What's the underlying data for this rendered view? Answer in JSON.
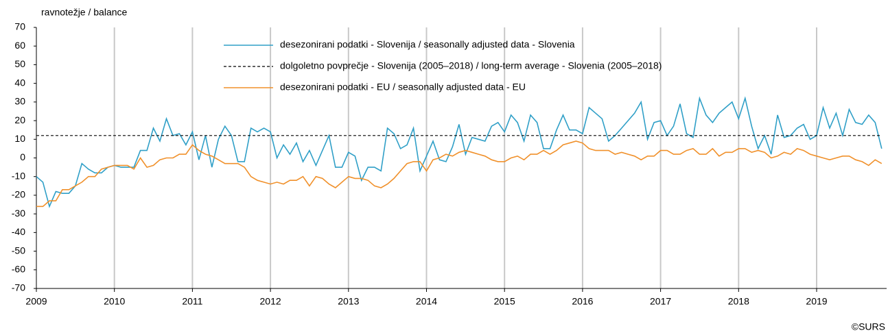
{
  "chart_data": {
    "type": "line",
    "y_label": "ravnotežje / balance",
    "source": "©SURS",
    "categories": [
      "2009",
      null,
      null,
      null,
      null,
      null,
      null,
      null,
      null,
      null,
      null,
      null,
      "2010",
      null,
      null,
      null,
      null,
      null,
      null,
      null,
      null,
      null,
      null,
      null,
      "2011",
      null,
      null,
      null,
      null,
      null,
      null,
      null,
      null,
      null,
      null,
      null,
      "2012",
      null,
      null,
      null,
      null,
      null,
      null,
      null,
      null,
      null,
      null,
      null,
      "2013",
      null,
      null,
      null,
      null,
      null,
      null,
      null,
      null,
      null,
      null,
      null,
      "2014",
      null,
      null,
      null,
      null,
      null,
      null,
      null,
      null,
      null,
      null,
      null,
      "2015",
      null,
      null,
      null,
      null,
      null,
      null,
      null,
      null,
      null,
      null,
      null,
      "2016",
      null,
      null,
      null,
      null,
      null,
      null,
      null,
      null,
      null,
      null,
      null,
      "2017",
      null,
      null,
      null,
      null,
      null,
      null,
      null,
      null,
      null,
      null,
      null,
      "2018",
      null,
      null,
      null,
      null,
      null,
      null,
      null,
      null,
      null,
      null,
      null,
      "2019",
      null,
      null,
      null,
      null,
      null,
      null,
      null,
      null,
      null,
      null
    ],
    "ylim": [
      -70,
      70
    ],
    "yticks": [
      -70,
      -60,
      -50,
      -40,
      -30,
      -20,
      -10,
      0,
      10,
      20,
      30,
      40,
      50,
      60,
      70
    ],
    "grid": true,
    "series": [
      {
        "name": "desezonirani podatki - Slovenija / seasonally adjusted data - Slovenia",
        "color": "#2f9fc7",
        "style": "solid",
        "values": [
          -10,
          -13,
          -26,
          -18,
          -19,
          -19,
          -15,
          -3,
          -6,
          -8,
          -8,
          -5,
          -4,
          -5,
          -5,
          -5,
          4,
          4,
          16,
          9,
          21,
          12,
          13,
          7,
          14,
          -1,
          12,
          -5,
          10,
          17,
          12,
          -2,
          -2,
          16,
          14,
          16,
          14,
          0,
          7,
          2,
          8,
          -2,
          4,
          -4,
          4,
          12,
          -5,
          -5,
          3,
          1,
          -12,
          -5,
          -5,
          -7,
          16,
          13,
          5,
          7,
          16,
          -7,
          1,
          9,
          -1,
          -2,
          6,
          18,
          2,
          11,
          10,
          9,
          17,
          19,
          14,
          23,
          19,
          9,
          23,
          19,
          5,
          5,
          15,
          23,
          15,
          15,
          13,
          27,
          24,
          21,
          9,
          12,
          16,
          20,
          24,
          30,
          10,
          19,
          20,
          12,
          17,
          29,
          13,
          11,
          32,
          23,
          19,
          24,
          27,
          30,
          21,
          32,
          17,
          5,
          12,
          2,
          23,
          11,
          12,
          16,
          18,
          10,
          12,
          27,
          16,
          24,
          12,
          26,
          19,
          18,
          23,
          19,
          5
        ]
      },
      {
        "name": "dolgoletno povprečje - Slovenija (2005–2018) / long-term average - Slovenia (2005–2018)",
        "color": "#000000",
        "style": "dashed",
        "values": [
          12,
          12,
          12,
          12,
          12,
          12,
          12,
          12,
          12,
          12,
          12,
          12,
          12,
          12,
          12,
          12,
          12,
          12,
          12,
          12,
          12,
          12,
          12,
          12,
          12,
          12,
          12,
          12,
          12,
          12,
          12,
          12,
          12,
          12,
          12,
          12,
          12,
          12,
          12,
          12,
          12,
          12,
          12,
          12,
          12,
          12,
          12,
          12,
          12,
          12,
          12,
          12,
          12,
          12,
          12,
          12,
          12,
          12,
          12,
          12,
          12,
          12,
          12,
          12,
          12,
          12,
          12,
          12,
          12,
          12,
          12,
          12,
          12,
          12,
          12,
          12,
          12,
          12,
          12,
          12,
          12,
          12,
          12,
          12,
          12,
          12,
          12,
          12,
          12,
          12,
          12,
          12,
          12,
          12,
          12,
          12,
          12,
          12,
          12,
          12,
          12,
          12,
          12,
          12,
          12,
          12,
          12,
          12,
          12,
          12,
          12,
          12,
          12,
          12,
          12,
          12,
          12,
          12,
          12,
          12,
          12,
          12,
          12,
          12,
          12,
          12,
          12,
          12,
          12,
          12,
          12
        ]
      },
      {
        "name": "desezonirani podatki - EU / seasonally adjusted data - EU",
        "color": "#f0902a",
        "style": "solid",
        "values": [
          -26,
          -26,
          -23,
          -23,
          -17,
          -17,
          -15,
          -13,
          -10,
          -10,
          -6,
          -5,
          -4,
          -4,
          -4,
          -6,
          0,
          -5,
          -4,
          -1,
          0,
          0,
          2,
          2,
          7,
          4,
          2,
          1,
          -1,
          -3,
          -3,
          -3,
          -5,
          -10,
          -12,
          -13,
          -14,
          -13,
          -14,
          -12,
          -12,
          -10,
          -15,
          -10,
          -11,
          -14,
          -16,
          -13,
          -10,
          -11,
          -11,
          -12,
          -15,
          -16,
          -14,
          -11,
          -7,
          -3,
          -2,
          -2,
          -7,
          -1,
          0,
          2,
          1,
          3,
          4,
          3,
          2,
          1,
          -1,
          -2,
          -2,
          0,
          1,
          -1,
          2,
          2,
          4,
          2,
          4,
          7,
          8,
          9,
          8,
          5,
          4,
          4,
          4,
          2,
          3,
          2,
          1,
          -1,
          1,
          1,
          4,
          4,
          2,
          2,
          4,
          5,
          2,
          2,
          5,
          1,
          3,
          3,
          5,
          5,
          3,
          4,
          3,
          0,
          1,
          3,
          2,
          5,
          4,
          2,
          1,
          0,
          -1,
          0,
          1,
          1,
          -1,
          -2,
          -4,
          -1,
          -3
        ]
      }
    ]
  }
}
